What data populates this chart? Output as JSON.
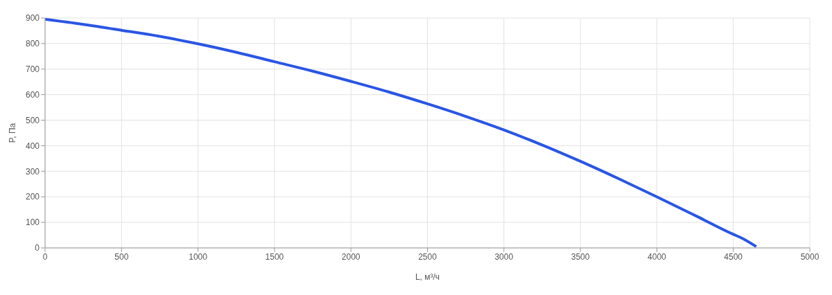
{
  "chart_data": {
    "type": "line",
    "xlabel": "L, м³/ч",
    "ylabel": "P, Па",
    "x": [
      0,
      250,
      500,
      750,
      1000,
      1250,
      1500,
      1750,
      2000,
      2250,
      2500,
      2750,
      3000,
      3250,
      3500,
      3750,
      4000,
      4250,
      4500,
      4550,
      4650
    ],
    "values": [
      895,
      875,
      852,
      828,
      799,
      766,
      729,
      692,
      652,
      610,
      564,
      515,
      462,
      403,
      339,
      271,
      200,
      127,
      53,
      40,
      5
    ],
    "color": "#2a55e5",
    "xlim": [
      0,
      5000
    ],
    "xticks": [
      0,
      500,
      1000,
      1500,
      2000,
      2500,
      3000,
      3500,
      4000,
      4500,
      5000
    ],
    "ylim": [
      0,
      900
    ],
    "yticks": [
      0,
      100,
      200,
      300,
      400,
      500,
      600,
      700,
      800,
      900
    ],
    "grid": true,
    "marker": "none",
    "line_style": "solid"
  }
}
